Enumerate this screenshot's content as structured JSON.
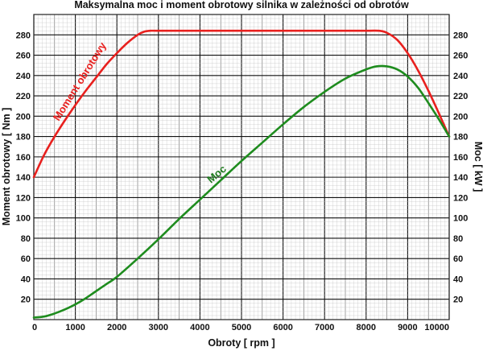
{
  "chart_data": {
    "type": "line",
    "title": "Maksymalna moc i moment obrotowy silnika w zależności od obrotów",
    "xlabel": "Obroty [ rpm ]",
    "ylabel_left": "Moment obrotowy [ Nm ]",
    "ylabel_right": "Moc [ kW ]",
    "xlim": [
      0,
      10000
    ],
    "ylim": [
      0,
      300
    ],
    "x_ticks": [
      0,
      1000,
      2000,
      3000,
      4000,
      5000,
      6000,
      7000,
      8000,
      9000,
      10000
    ],
    "y_ticks_left": [
      20,
      40,
      60,
      80,
      100,
      120,
      140,
      160,
      180,
      200,
      220,
      240,
      260,
      280
    ],
    "y_ticks_right": [
      20,
      40,
      60,
      80,
      100,
      120,
      140,
      160,
      180,
      200,
      220,
      240,
      260,
      280
    ],
    "grid": true,
    "series": [
      {
        "name": "Moment obrotowy",
        "axis": "left",
        "color": "#e8201e",
        "x": [
          0,
          250,
          500,
          750,
          1000,
          1250,
          1500,
          1750,
          2000,
          2250,
          2500,
          2650,
          2800,
          3000,
          4000,
          5000,
          6000,
          7000,
          8000,
          8300,
          8500,
          8750,
          9000,
          9250,
          9500,
          9750,
          10000
        ],
        "y": [
          140,
          162,
          180,
          196,
          211,
          225,
          238,
          251,
          262,
          272,
          280,
          283,
          284,
          284,
          284,
          284,
          284,
          284,
          284,
          284,
          282,
          275,
          262,
          245,
          225,
          203,
          180
        ]
      },
      {
        "name": "Moc",
        "axis": "right",
        "color": "#1e8c1e",
        "x": [
          0,
          250,
          500,
          750,
          1000,
          1250,
          1500,
          1750,
          2000,
          2500,
          3000,
          3500,
          4000,
          4500,
          5000,
          5500,
          6000,
          6500,
          7000,
          7500,
          8000,
          8250,
          8500,
          8750,
          9000,
          9250,
          9500,
          9750,
          10000
        ],
        "y": [
          2,
          3,
          6,
          10,
          15,
          21,
          28,
          35,
          42,
          60,
          79,
          99,
          118,
          137,
          156,
          174,
          192,
          209,
          224,
          237,
          246,
          249,
          249,
          246,
          239,
          228,
          213,
          197,
          180
        ]
      }
    ]
  }
}
